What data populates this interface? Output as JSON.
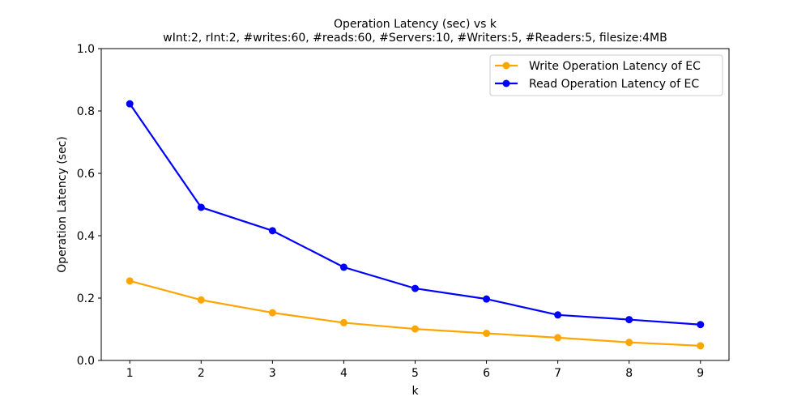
{
  "chart_data": {
    "type": "line",
    "title": "Operation Latency (sec) vs k",
    "subtitle": "wInt:2, rInt:2, #writes:60, #reads:60, #Servers:10, #Writers:5, #Readers:5, filesize:4MB",
    "xlabel": "k",
    "ylabel": "Operation Latency (sec)",
    "x": [
      1,
      2,
      3,
      4,
      5,
      6,
      7,
      8,
      9
    ],
    "xlim": [
      0.6,
      9.4
    ],
    "ylim": [
      0.0,
      1.0
    ],
    "xticks": [
      "1",
      "2",
      "3",
      "4",
      "5",
      "6",
      "7",
      "8",
      "9"
    ],
    "yticks": [
      "0.0",
      "0.2",
      "0.4",
      "0.6",
      "0.8",
      "1.0"
    ],
    "grid": false,
    "legend_position": "top-right",
    "series": [
      {
        "name": "Write Operation Latency of EC",
        "color": "#FFA500",
        "values": [
          0.255,
          0.194,
          0.153,
          0.121,
          0.101,
          0.087,
          0.073,
          0.058,
          0.047
        ]
      },
      {
        "name": "Read Operation Latency of EC",
        "color": "#0000FF",
        "values": [
          0.823,
          0.491,
          0.416,
          0.299,
          0.231,
          0.197,
          0.146,
          0.131,
          0.115
        ]
      }
    ]
  }
}
